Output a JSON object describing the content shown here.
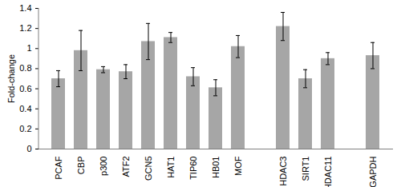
{
  "chart_data": {
    "type": "bar",
    "y_label": "Fold-change",
    "categories": [
      "PCAF",
      "CBP",
      "p300",
      "ATF2",
      "GCN5",
      "HAT1",
      "TIP60",
      "HB01",
      "MOF",
      null,
      "HDAC3",
      "SIRT1",
      "HDAC11",
      null,
      "GAPDH"
    ],
    "values": [
      0.7,
      0.98,
      0.79,
      0.77,
      1.07,
      1.11,
      0.72,
      0.61,
      1.02,
      null,
      1.22,
      0.7,
      0.9,
      null,
      0.93
    ],
    "errors": [
      0.08,
      0.2,
      0.03,
      0.07,
      0.18,
      0.05,
      0.09,
      0.08,
      0.11,
      null,
      0.14,
      0.09,
      0.06,
      null,
      0.13
    ],
    "color": "#a6a6a6",
    "ylim": [
      0,
      1.4
    ],
    "yticks": [
      0,
      0.2,
      0.4,
      0.6,
      0.8,
      1,
      1.2,
      1.4
    ],
    "grid": false
  }
}
